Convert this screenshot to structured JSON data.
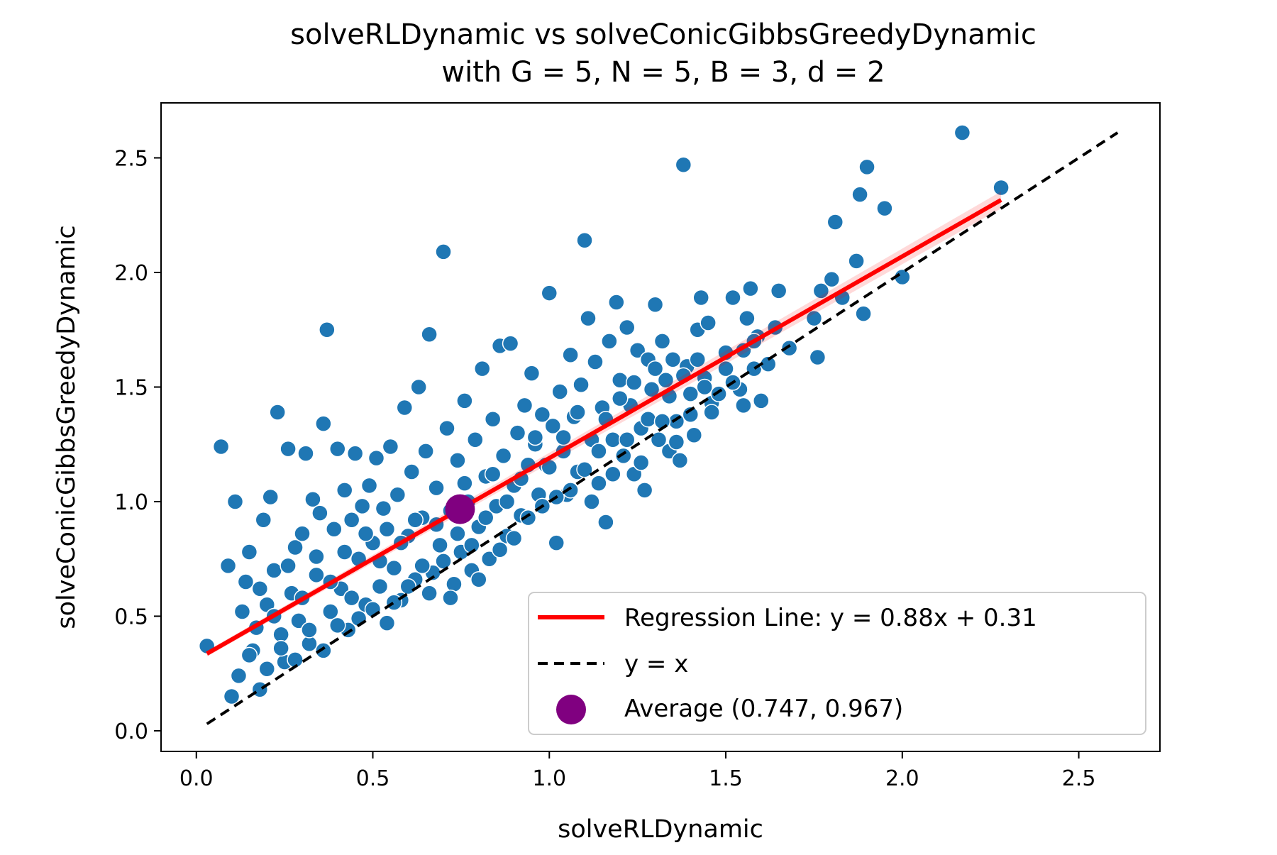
{
  "chart_data": {
    "type": "scatter",
    "title": "solveRLDynamic vs solveConicGibbsGreedyDynamic",
    "subtitle": "with G = 5, N = 5, B = 3, d = 2",
    "xlabel": "solveRLDynamic",
    "ylabel": "solveConicGibbsGreedyDynamic",
    "xlim": [
      -0.1,
      2.73
    ],
    "ylim": [
      -0.09,
      2.74
    ],
    "x_ticks": [
      0.0,
      0.5,
      1.0,
      1.5,
      2.0,
      2.5
    ],
    "y_ticks": [
      0.0,
      0.5,
      1.0,
      1.5,
      2.0,
      2.5
    ],
    "x_tick_labels": [
      "0.0",
      "0.5",
      "1.0",
      "1.5",
      "2.0",
      "2.5"
    ],
    "y_tick_labels": [
      "0.0",
      "0.5",
      "1.0",
      "1.5",
      "2.0",
      "2.5"
    ],
    "grid": false,
    "legend_position": "bottom-right",
    "series": [
      {
        "name": "",
        "kind": "scatter",
        "color": "#1f77b4",
        "points": [
          [
            0.03,
            0.37
          ],
          [
            0.07,
            1.24
          ],
          [
            0.09,
            0.72
          ],
          [
            0.1,
            0.15
          ],
          [
            0.11,
            1.0
          ],
          [
            0.12,
            0.24
          ],
          [
            0.13,
            0.52
          ],
          [
            0.14,
            0.65
          ],
          [
            0.15,
            0.78
          ],
          [
            0.16,
            0.35
          ],
          [
            0.17,
            0.45
          ],
          [
            0.18,
            0.18
          ],
          [
            0.19,
            0.92
          ],
          [
            0.2,
            0.55
          ],
          [
            0.21,
            1.02
          ],
          [
            0.22,
            0.7
          ],
          [
            0.23,
            1.39
          ],
          [
            0.24,
            0.42
          ],
          [
            0.25,
            0.3
          ],
          [
            0.26,
            1.23
          ],
          [
            0.27,
            0.6
          ],
          [
            0.28,
            0.8
          ],
          [
            0.29,
            0.48
          ],
          [
            0.3,
            0.86
          ],
          [
            0.31,
            1.21
          ],
          [
            0.32,
            0.38
          ],
          [
            0.33,
            1.01
          ],
          [
            0.34,
            0.68
          ],
          [
            0.35,
            0.95
          ],
          [
            0.36,
            1.34
          ],
          [
            0.37,
            1.75
          ],
          [
            0.38,
            0.52
          ],
          [
            0.39,
            0.88
          ],
          [
            0.4,
            1.23
          ],
          [
            0.41,
            0.62
          ],
          [
            0.42,
            1.05
          ],
          [
            0.43,
            0.44
          ],
          [
            0.44,
            0.92
          ],
          [
            0.45,
            1.21
          ],
          [
            0.46,
            0.75
          ],
          [
            0.47,
            0.98
          ],
          [
            0.48,
            0.55
          ],
          [
            0.49,
            1.07
          ],
          [
            0.5,
            0.82
          ],
          [
            0.51,
            1.19
          ],
          [
            0.52,
            0.63
          ],
          [
            0.53,
            0.97
          ],
          [
            0.54,
            0.47
          ],
          [
            0.55,
            1.24
          ],
          [
            0.56,
            0.71
          ],
          [
            0.57,
            1.03
          ],
          [
            0.58,
            0.57
          ],
          [
            0.59,
            1.41
          ],
          [
            0.6,
            0.85
          ],
          [
            0.61,
            1.13
          ],
          [
            0.62,
            0.66
          ],
          [
            0.63,
            1.5
          ],
          [
            0.64,
            0.93
          ],
          [
            0.65,
            1.22
          ],
          [
            0.66,
            1.73
          ],
          [
            0.67,
            0.69
          ],
          [
            0.68,
            1.06
          ],
          [
            0.69,
            0.81
          ],
          [
            0.7,
            2.09
          ],
          [
            0.71,
            1.32
          ],
          [
            0.72,
            0.96
          ],
          [
            0.73,
            0.64
          ],
          [
            0.74,
            1.18
          ],
          [
            0.75,
            0.78
          ],
          [
            0.76,
            1.44
          ],
          [
            0.77,
            1.0
          ],
          [
            0.78,
            0.7
          ],
          [
            0.79,
            1.27
          ],
          [
            0.8,
            0.89
          ],
          [
            0.81,
            1.58
          ],
          [
            0.82,
            1.11
          ],
          [
            0.83,
            0.75
          ],
          [
            0.84,
            1.36
          ],
          [
            0.85,
            0.98
          ],
          [
            0.86,
            1.68
          ],
          [
            0.87,
            1.2
          ],
          [
            0.88,
            0.85
          ],
          [
            0.89,
            1.69
          ],
          [
            0.9,
            1.07
          ],
          [
            0.91,
            1.3
          ],
          [
            0.92,
            0.94
          ],
          [
            0.93,
            1.42
          ],
          [
            0.94,
            1.16
          ],
          [
            0.95,
            1.56
          ],
          [
            0.96,
            1.25
          ],
          [
            0.97,
            1.03
          ],
          [
            0.98,
            1.38
          ],
          [
            0.99,
            1.16
          ],
          [
            1.0,
            1.91
          ],
          [
            1.01,
            1.33
          ],
          [
            1.02,
            0.82
          ],
          [
            1.03,
            1.48
          ],
          [
            1.04,
            1.22
          ],
          [
            1.05,
            1.03
          ],
          [
            1.06,
            1.64
          ],
          [
            1.07,
            1.37
          ],
          [
            1.08,
            1.13
          ],
          [
            1.09,
            1.51
          ],
          [
            1.1,
            2.14
          ],
          [
            1.11,
            1.8
          ],
          [
            1.12,
            1.27
          ],
          [
            1.13,
            1.61
          ],
          [
            1.14,
            1.08
          ],
          [
            1.15,
            1.41
          ],
          [
            1.16,
            0.91
          ],
          [
            1.17,
            1.7
          ],
          [
            1.18,
            1.27
          ],
          [
            1.19,
            1.87
          ],
          [
            1.2,
            1.53
          ],
          [
            1.21,
            1.2
          ],
          [
            1.22,
            1.76
          ],
          [
            1.23,
            1.42
          ],
          [
            1.24,
            1.12
          ],
          [
            1.25,
            1.66
          ],
          [
            1.26,
            1.32
          ],
          [
            1.27,
            1.05
          ],
          [
            1.28,
            1.62
          ],
          [
            1.29,
            1.49
          ],
          [
            1.3,
            1.86
          ],
          [
            1.31,
            1.27
          ],
          [
            1.32,
            1.7
          ],
          [
            1.33,
            1.53
          ],
          [
            1.34,
            1.22
          ],
          [
            1.35,
            1.62
          ],
          [
            1.36,
            1.35
          ],
          [
            1.37,
            1.18
          ],
          [
            1.38,
            2.47
          ],
          [
            1.39,
            1.59
          ],
          [
            1.4,
            1.47
          ],
          [
            1.41,
            1.29
          ],
          [
            1.42,
            1.75
          ],
          [
            1.43,
            1.89
          ],
          [
            1.44,
            1.54
          ],
          [
            1.45,
            1.78
          ],
          [
            1.46,
            1.43
          ],
          [
            1.48,
            1.47
          ],
          [
            1.5,
            1.65
          ],
          [
            1.52,
            1.89
          ],
          [
            1.54,
            1.49
          ],
          [
            1.55,
            1.42
          ],
          [
            1.56,
            1.8
          ],
          [
            1.57,
            1.93
          ],
          [
            1.58,
            1.58
          ],
          [
            1.59,
            1.72
          ],
          [
            1.6,
            1.44
          ],
          [
            1.62,
            1.6
          ],
          [
            1.64,
            1.76
          ],
          [
            1.65,
            1.92
          ],
          [
            1.68,
            1.67
          ],
          [
            1.75,
            1.8
          ],
          [
            1.76,
            1.63
          ],
          [
            1.77,
            1.92
          ],
          [
            1.8,
            1.97
          ],
          [
            1.81,
            2.22
          ],
          [
            1.83,
            1.89
          ],
          [
            1.87,
            2.05
          ],
          [
            1.88,
            2.34
          ],
          [
            1.89,
            1.82
          ],
          [
            1.9,
            2.46
          ],
          [
            1.95,
            2.28
          ],
          [
            2.0,
            1.98
          ],
          [
            2.17,
            2.61
          ],
          [
            2.28,
            2.37
          ],
          [
            0.15,
            0.33
          ],
          [
            0.18,
            0.62
          ],
          [
            0.2,
            0.27
          ],
          [
            0.22,
            0.5
          ],
          [
            0.24,
            0.36
          ],
          [
            0.26,
            0.72
          ],
          [
            0.28,
            0.31
          ],
          [
            0.3,
            0.58
          ],
          [
            0.32,
            0.44
          ],
          [
            0.34,
            0.76
          ],
          [
            0.36,
            0.35
          ],
          [
            0.38,
            0.65
          ],
          [
            0.4,
            0.46
          ],
          [
            0.42,
            0.78
          ],
          [
            0.44,
            0.58
          ],
          [
            0.46,
            0.49
          ],
          [
            0.48,
            0.86
          ],
          [
            0.5,
            0.53
          ],
          [
            0.52,
            0.74
          ],
          [
            0.54,
            0.88
          ],
          [
            0.56,
            0.56
          ],
          [
            0.58,
            0.82
          ],
          [
            0.6,
            0.63
          ],
          [
            0.62,
            0.92
          ],
          [
            0.64,
            0.72
          ],
          [
            0.66,
            0.6
          ],
          [
            0.68,
            0.9
          ],
          [
            0.7,
            0.74
          ],
          [
            0.72,
            0.58
          ],
          [
            0.74,
            0.86
          ],
          [
            0.76,
            1.08
          ],
          [
            0.78,
            0.81
          ],
          [
            0.8,
            0.66
          ],
          [
            0.82,
            0.93
          ],
          [
            0.84,
            1.12
          ],
          [
            0.86,
            0.79
          ],
          [
            0.88,
            1.0
          ],
          [
            0.9,
            0.84
          ],
          [
            0.92,
            1.1
          ],
          [
            0.94,
            0.93
          ],
          [
            0.96,
            1.28
          ],
          [
            0.98,
            0.98
          ],
          [
            1.0,
            1.15
          ],
          [
            1.02,
            1.02
          ],
          [
            1.04,
            1.28
          ],
          [
            1.06,
            1.05
          ],
          [
            1.08,
            1.39
          ],
          [
            1.1,
            1.14
          ],
          [
            1.12,
            1.0
          ],
          [
            1.14,
            1.22
          ],
          [
            1.16,
            1.36
          ],
          [
            1.18,
            1.12
          ],
          [
            1.2,
            1.45
          ],
          [
            1.22,
            1.27
          ],
          [
            1.24,
            1.52
          ],
          [
            1.26,
            1.17
          ],
          [
            1.28,
            1.36
          ],
          [
            1.3,
            1.58
          ],
          [
            1.32,
            1.35
          ],
          [
            1.34,
            1.46
          ],
          [
            1.36,
            1.26
          ],
          [
            1.38,
            1.55
          ],
          [
            1.4,
            1.38
          ],
          [
            1.42,
            1.62
          ],
          [
            1.44,
            1.5
          ],
          [
            1.46,
            1.39
          ],
          [
            1.5,
            1.58
          ],
          [
            1.52,
            1.52
          ],
          [
            1.55,
            1.66
          ],
          [
            1.58,
            1.7
          ]
        ]
      },
      {
        "name": "Regression Line: y = 0.88x + 0.31",
        "kind": "line",
        "color": "#ff0000",
        "line": [
          [
            0.03,
            0.3364
          ],
          [
            2.28,
            2.3164
          ]
        ]
      },
      {
        "name": "y = x",
        "kind": "dashed-line",
        "color": "#000000",
        "line": [
          [
            0.03,
            0.03
          ],
          [
            2.61,
            2.61
          ]
        ]
      },
      {
        "name": "Average (0.747, 0.967)",
        "kind": "marker",
        "color": "#800080",
        "point": [
          0.747,
          0.967
        ]
      }
    ]
  }
}
